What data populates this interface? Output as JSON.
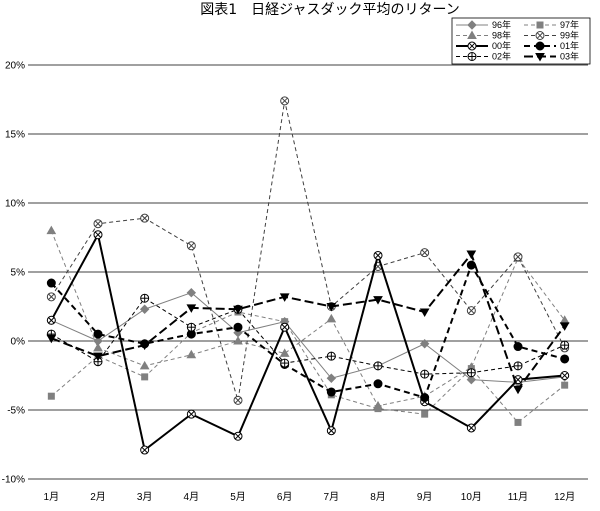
{
  "chart_data": {
    "type": "line",
    "title": "図表1　日経ジャスダック平均のリターン",
    "xlabel": "",
    "ylabel": "",
    "categories": [
      "1月",
      "2月",
      "3月",
      "4月",
      "5月",
      "6月",
      "7月",
      "8月",
      "9月",
      "10月",
      "11月",
      "12月"
    ],
    "y_ticks": [
      "20%",
      "15%",
      "10%",
      "5%",
      "0%",
      "-5%",
      "-10%"
    ],
    "ylim": [
      -10,
      20
    ],
    "grid": true,
    "legend_position": "top-right",
    "series": [
      {
        "name": "96年",
        "color": "#808080",
        "style": "solid",
        "marker": "diamond",
        "values": [
          1.5,
          0.0,
          2.3,
          3.5,
          0.6,
          1.4,
          -2.7,
          -1.8,
          -0.2,
          -2.8,
          -3.0,
          -2.6
        ]
      },
      {
        "name": "97年",
        "color": "#808080",
        "style": "dashed",
        "marker": "square",
        "values": [
          -4.0,
          -1.1,
          -2.6,
          0.6,
          2.1,
          1.4,
          -3.9,
          -4.9,
          -5.3,
          -2.0,
          -5.9,
          -3.2
        ]
      },
      {
        "name": "98年",
        "color": "#808080",
        "style": "dashed",
        "marker": "triangle",
        "values": [
          8.0,
          -0.5,
          -1.8,
          -1.0,
          0.0,
          -0.9,
          1.6,
          -4.7,
          -4.0,
          -1.9,
          6.0,
          1.5
        ]
      },
      {
        "name": "99年",
        "color": "#404040",
        "style": "dashed",
        "marker": "circle-x",
        "values": [
          3.2,
          8.5,
          8.9,
          6.9,
          -4.3,
          17.4,
          2.5,
          5.4,
          6.4,
          2.2,
          6.1,
          -0.5
        ]
      },
      {
        "name": "00年",
        "color": "#000000",
        "style": "solid-thick",
        "marker": "circle-x",
        "values": [
          1.5,
          7.7,
          -7.9,
          -5.3,
          -6.9,
          1.0,
          -6.5,
          6.2,
          -4.4,
          -6.3,
          -2.8,
          -2.5
        ]
      },
      {
        "name": "01年",
        "color": "#000000",
        "style": "dashed-thick",
        "marker": "circle",
        "values": [
          4.2,
          0.5,
          -0.2,
          0.5,
          1.0,
          -1.7,
          -3.7,
          -3.1,
          -4.1,
          5.5,
          -0.4,
          -1.3
        ]
      },
      {
        "name": "02年",
        "color": "#000000",
        "style": "dashed",
        "marker": "circle-plus",
        "values": [
          0.5,
          -1.5,
          3.1,
          1.0,
          2.3,
          -1.6,
          -1.1,
          -1.8,
          -2.4,
          -2.3,
          -1.8,
          -0.3
        ]
      },
      {
        "name": "03年",
        "color": "#000000",
        "style": "longdash-thick",
        "marker": "triangle-down",
        "values": [
          0.2,
          -1.1,
          -0.3,
          2.4,
          2.3,
          3.2,
          2.5,
          3.0,
          2.1,
          6.3,
          -3.5,
          1.1
        ]
      }
    ]
  }
}
